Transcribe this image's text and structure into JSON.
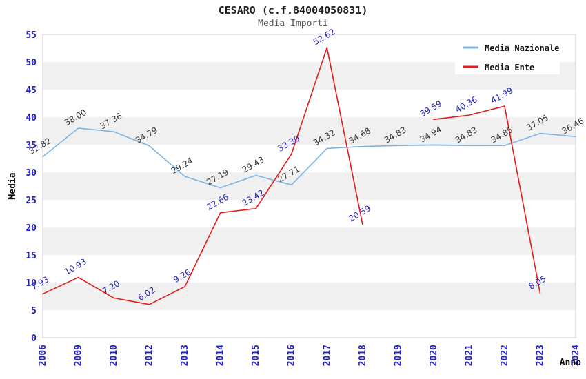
{
  "header": {
    "title": "CESARO (c.f.84004050831)",
    "subtitle": "Media Importi"
  },
  "axes": {
    "ylabel": "Media",
    "xlabel": "Anno"
  },
  "legend": {
    "items": [
      {
        "label": "Media Nazionale",
        "color": "#7eb3e2"
      },
      {
        "label": "Media Ente",
        "color": "#e31b1b"
      }
    ]
  },
  "colors": {
    "tick_blue": "#2222cc",
    "nazionale_line": "#7eb3e2",
    "ente_line": "#e31b1b",
    "nazionale_label": "#333333",
    "ente_label": "#2222bb",
    "band_gray": "#f0f0f0",
    "plot_border": "#cccccc"
  },
  "chart_data": {
    "type": "line",
    "title": "CESARO (c.f.84004050831)",
    "subtitle": "Media Importi",
    "xlabel": "Anno",
    "ylabel": "Media",
    "ylim": [
      0,
      55
    ],
    "ytick_step": 5,
    "grid": "horizontal-bands",
    "legend_position": "top-right",
    "categories": [
      "2006",
      "2009",
      "2010",
      "2012",
      "2013",
      "2014",
      "2015",
      "2016",
      "2017",
      "2018",
      "2019",
      "2020",
      "2021",
      "2022",
      "2023",
      "2024"
    ],
    "series": [
      {
        "name": "Media Nazionale",
        "color": "#7eb3e2",
        "label_color": "#333333",
        "values": [
          32.82,
          38.0,
          37.36,
          34.79,
          29.24,
          27.19,
          29.43,
          27.71,
          34.32,
          34.68,
          34.83,
          34.94,
          34.83,
          34.85,
          37.05,
          36.46
        ]
      },
      {
        "name": "Media Ente",
        "color": "#e31b1b",
        "label_color": "#2222bb",
        "values": [
          7.93,
          10.93,
          7.2,
          6.02,
          9.26,
          22.66,
          23.42,
          33.3,
          52.62,
          20.59,
          null,
          39.59,
          40.36,
          41.99,
          8.05,
          null
        ]
      }
    ]
  }
}
